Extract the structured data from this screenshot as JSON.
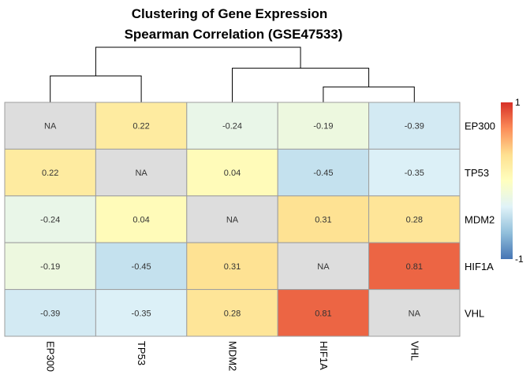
{
  "chart_data": {
    "type": "heatmap",
    "title": "Clustering of Gene Expression",
    "subtitle": "Spearman Correlation (GSE47533)",
    "rows": [
      "EP300",
      "TP53",
      "MDM2",
      "HIF1A",
      "VHL"
    ],
    "columns": [
      "EP300",
      "TP53",
      "MDM2",
      "HIF1A",
      "VHL"
    ],
    "values": [
      [
        null,
        0.22,
        -0.24,
        -0.19,
        -0.39
      ],
      [
        0.22,
        null,
        0.04,
        -0.45,
        -0.35
      ],
      [
        -0.24,
        0.04,
        null,
        0.31,
        0.28
      ],
      [
        -0.19,
        -0.45,
        0.31,
        null,
        0.81
      ],
      [
        -0.39,
        -0.35,
        0.28,
        0.81,
        null
      ]
    ],
    "cell_labels": [
      [
        "NA",
        "0.22",
        "-0.24",
        "-0.19",
        "-0.39"
      ],
      [
        "0.22",
        "NA",
        "0.04",
        "-0.45",
        "-0.35"
      ],
      [
        "-0.24",
        "0.04",
        "NA",
        "0.31",
        "0.28"
      ],
      [
        "-0.19",
        "-0.45",
        "0.31",
        "NA",
        "0.81"
      ],
      [
        "-0.39",
        "-0.35",
        "0.28",
        "0.81",
        "NA"
      ]
    ],
    "na_color": "#dddddd",
    "color_scale": {
      "min": -1,
      "max": 1,
      "stops": [
        "#4575b4",
        "#91bfdb",
        "#e0f3f8",
        "#ffffbf",
        "#fee090",
        "#fc8d59",
        "#d73027"
      ],
      "tick_labels": [
        "1",
        "-1"
      ],
      "legend_placement": "right"
    },
    "dendrogram": {
      "columns": {
        "merges": [
          [
            0,
            1,
            0.48
          ],
          [
            3,
            4,
            0.28
          ],
          [
            2,
            -2,
            0.62
          ],
          [
            -1,
            -3,
            1.0
          ]
        ]
      }
    }
  }
}
